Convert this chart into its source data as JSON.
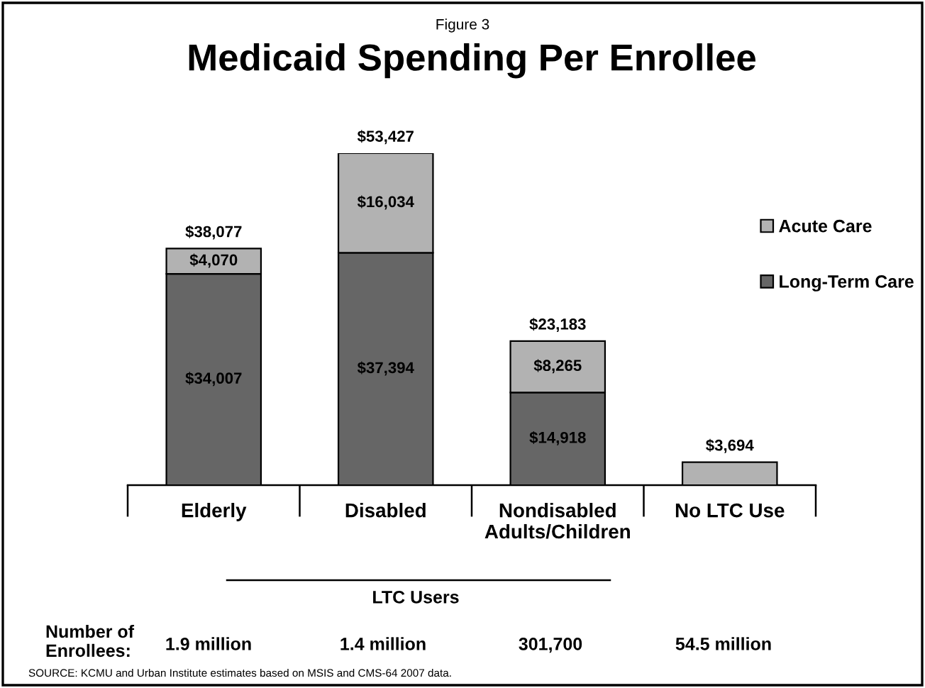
{
  "chart_data": {
    "type": "bar",
    "title": "Medicaid Spending Per Enrollee",
    "categories": [
      "Elderly",
      "Disabled",
      "Nondisabled\nAdults/Children",
      "No LTC Use"
    ],
    "stacked": true,
    "series": [
      {
        "name": "Long-Term Care",
        "color": "#666666",
        "values": [
          34007,
          37394,
          14918,
          null
        ],
        "value_labels": [
          "$34,007",
          "$37,394",
          "$14,918",
          null
        ]
      },
      {
        "name": "Acute Care",
        "color": "#b2b2b2",
        "values": [
          4070,
          16034,
          8265,
          3694
        ],
        "value_labels": [
          "$4,070",
          "$16,034",
          "$8,265",
          null
        ]
      }
    ],
    "totals": [
      "$38,077",
      "$53,427",
      "$23,183",
      "$3,694"
    ],
    "legend": "right",
    "annotations": [
      "Figure 3",
      "LTC Users",
      "Number of\nEnrollees:",
      "1.9 million",
      "1.4 million",
      "301,700",
      "54.5 million",
      "SOURCE: KCMU and Urban Institute estimates based on MSIS and CMS-64 2007 data."
    ]
  }
}
